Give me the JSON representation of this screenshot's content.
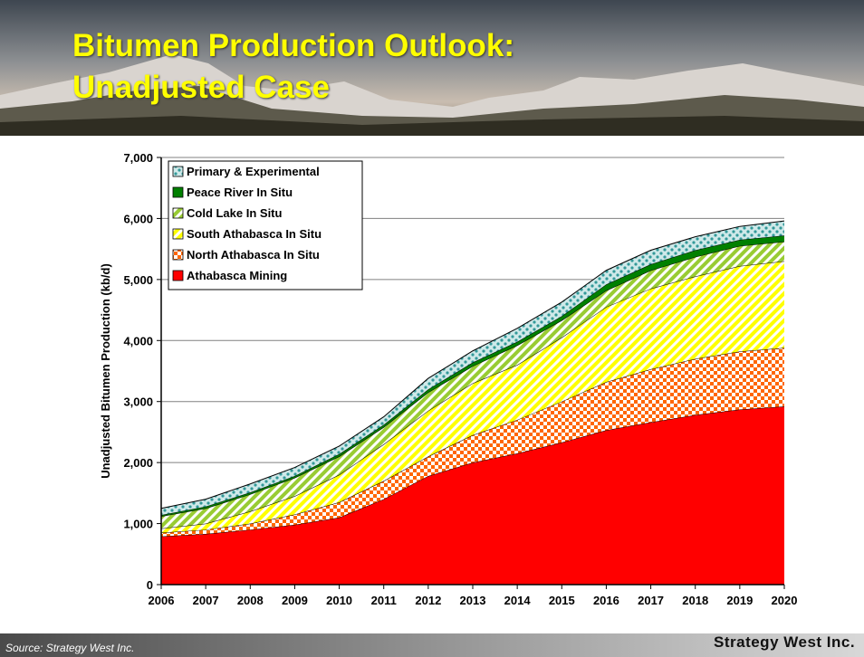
{
  "title": "Bitumen Production Outlook: Unadjusted Case",
  "source": "Source: Strategy West Inc.",
  "logo": "Strategy West Inc.",
  "chart_data": {
    "type": "stacked-area",
    "y_label": "Unadjusted Bitumen Production (kb/d)",
    "x": [
      2006,
      2007,
      2008,
      2009,
      2010,
      2011,
      2012,
      2013,
      2014,
      2015,
      2016,
      2017,
      2018,
      2019,
      2020
    ],
    "xlim": [
      2006,
      2020
    ],
    "xticks": [
      2006,
      2007,
      2008,
      2009,
      2010,
      2011,
      2012,
      2013,
      2014,
      2015,
      2016,
      2017,
      2018,
      2019,
      2020
    ],
    "ylim": [
      0,
      7000
    ],
    "yticks": [
      0,
      {
        "value": 1000,
        "label": "1,000"
      },
      {
        "value": 2000,
        "label": "2,000"
      },
      {
        "value": 3000,
        "label": "3,000"
      },
      {
        "value": 4000,
        "label": "4,000"
      },
      {
        "value": 5000,
        "label": "5,000"
      },
      {
        "value": 6000,
        "label": "6,000"
      },
      {
        "value": 7000,
        "label": "7,000"
      }
    ],
    "grid": true,
    "legend": "upper left",
    "series": [
      {
        "name": "Athabasca Mining",
        "color": "#ff0000",
        "values": [
          790,
          830,
          900,
          980,
          1100,
          1400,
          1780,
          2000,
          2150,
          2330,
          2530,
          2660,
          2780,
          2870,
          2920
        ]
      },
      {
        "name": "North Athabasca In Situ",
        "color": "#ff6600",
        "values": [
          60,
          70,
          100,
          170,
          250,
          300,
          320,
          450,
          550,
          670,
          790,
          870,
          920,
          950,
          960
        ]
      },
      {
        "name": "South Athabasca In Situ",
        "color": "#ffff00",
        "values": [
          70,
          100,
          200,
          300,
          450,
          600,
          750,
          850,
          900,
          1050,
          1230,
          1320,
          1350,
          1400,
          1420
        ]
      },
      {
        "name": "Cold Lake In Situ",
        "color": "#99cc33",
        "values": [
          200,
          250,
          280,
          300,
          300,
          280,
          300,
          280,
          320,
          280,
          270,
          300,
          320,
          330,
          320
        ]
      },
      {
        "name": "Peace River In Situ",
        "color": "#008000",
        "values": [
          20,
          30,
          30,
          30,
          40,
          40,
          50,
          60,
          60,
          70,
          100,
          100,
          110,
          100,
          100
        ]
      },
      {
        "name": "Primary & Experimental",
        "color": "#339999",
        "values": [
          110,
          120,
          140,
          140,
          130,
          130,
          180,
          190,
          220,
          230,
          230,
          230,
          220,
          220,
          240
        ]
      }
    ]
  }
}
